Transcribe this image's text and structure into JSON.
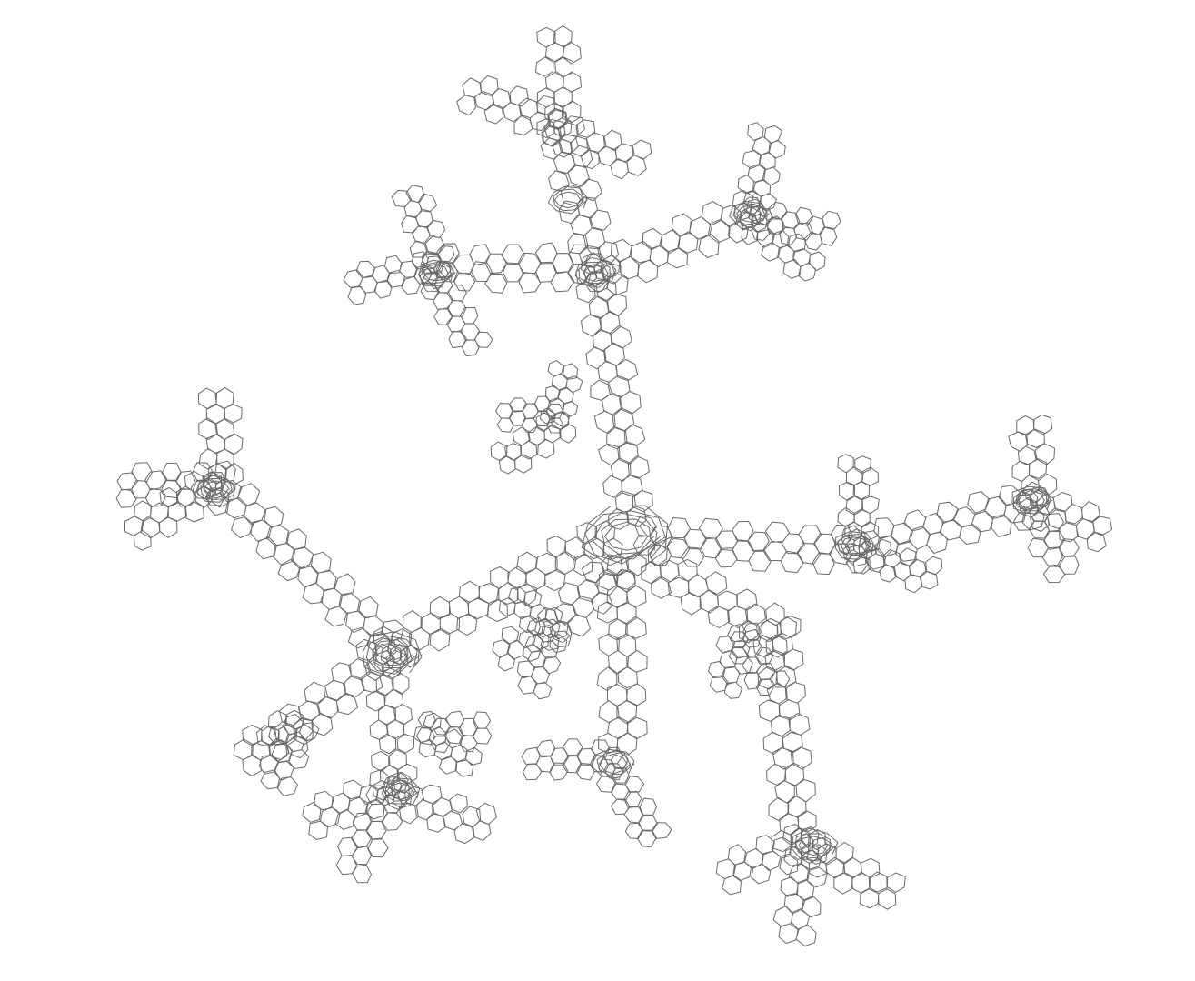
{
  "figure": {
    "subject": "dendritic-molecular-framework",
    "line_color": "#6a6a6a",
    "background_color": "#ffffff"
  }
}
